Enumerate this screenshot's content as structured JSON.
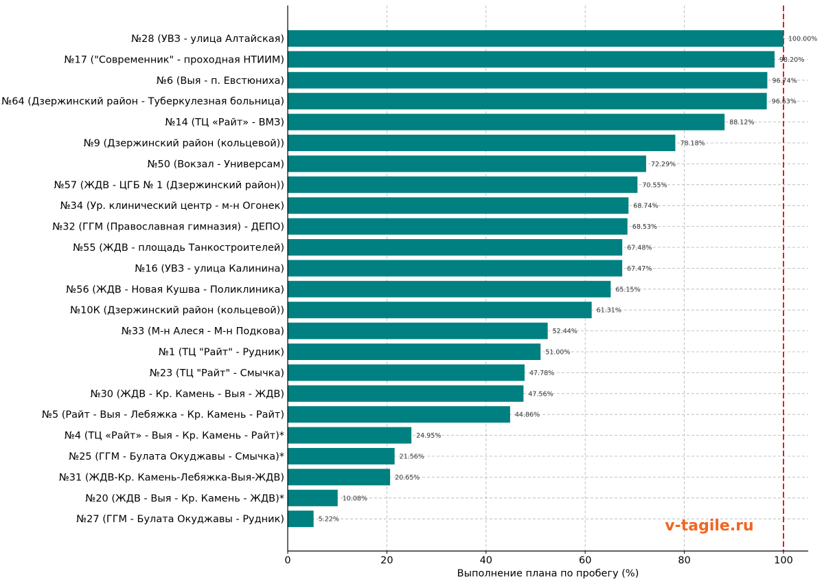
{
  "chart_data": {
    "type": "bar",
    "orientation": "horizontal",
    "title": "",
    "xlabel": "Выполнение плана по пробегу (%)",
    "ylabel": "",
    "xlim": [
      0,
      105
    ],
    "xticks": [
      0,
      20,
      40,
      60,
      80,
      100
    ],
    "grid": true,
    "reference_line": {
      "value": 100,
      "style": "dashed",
      "color": "#e31a1c"
    },
    "bar_color": "#008080",
    "categories": [
      "№28 (УВЗ - улица Алтайская)",
      "№17 (\"Современник\" - проходная НТИИМ)",
      "№6 (Выя - п. Евстюниха)",
      "№64 (Дзержинский район - Туберкулезная больница)",
      "№14 (ТЦ «Райт» - ВМЗ)",
      "№9 (Дзержинский район (кольцевой))",
      "№50 (Вокзал - Универсам)",
      "№57 (ЖДВ - ЦГБ № 1 (Дзержинский район))",
      "№34 (Ур. клинический центр - м-н Огонек)",
      "№32 (ГГМ (Православная гимназия) - ДЕПО)",
      "№55 (ЖДВ - площадь Танкостроителей)",
      "№16 (УВЗ - улица Калинина)",
      "№56 (ЖДВ - Новая Кушва - Поликлиника)",
      "№10К (Дзержинский район (кольцевой))",
      "№33 (М-н Алеся - М-н Подкова)",
      "№1 (ТЦ \"Райт\" - Рудник)",
      "№23 (ТЦ \"Райт\" - Смычка)",
      "№30 (ЖДВ - Кр. Камень - Выя - ЖДВ)",
      "№5 (Райт - Выя - Лебяжка - Кр. Камень - Райт)",
      "№4 (ТЦ «Райт» - Выя - Кр. Камень - Райт)*",
      "№25 (ГГМ - Булата Окуджавы - Смычка)*",
      "№31 (ЖДВ-Кр. Камень-Лебяжка-Выя-ЖДВ)",
      "№20 (ЖДВ - Выя - Кр. Камень - ЖДВ)*",
      "№27 (ГГМ - Булата Окуджавы - Рудник)"
    ],
    "values": [
      100.0,
      98.2,
      96.74,
      96.63,
      88.12,
      78.18,
      72.29,
      70.55,
      68.74,
      68.53,
      67.48,
      67.47,
      65.15,
      61.31,
      52.44,
      51.0,
      47.78,
      47.56,
      44.86,
      24.95,
      21.56,
      20.65,
      10.08,
      5.22
    ],
    "value_labels": [
      "100.00%",
      "98.20%",
      "96.74%",
      "96.63%",
      "88.12%",
      "78.18%",
      "72.29%",
      "70.55%",
      "68.74%",
      "68.53%",
      "67.48%",
      "67.47%",
      "65.15%",
      "61.31%",
      "52.44%",
      "51.00%",
      "47.78%",
      "47.56%",
      "44.86%",
      "24.95%",
      "21.56%",
      "20.65%",
      "10.08%",
      "5.22%"
    ]
  },
  "watermark": {
    "text": "v-tagile.ru",
    "color": "#f26522"
  }
}
